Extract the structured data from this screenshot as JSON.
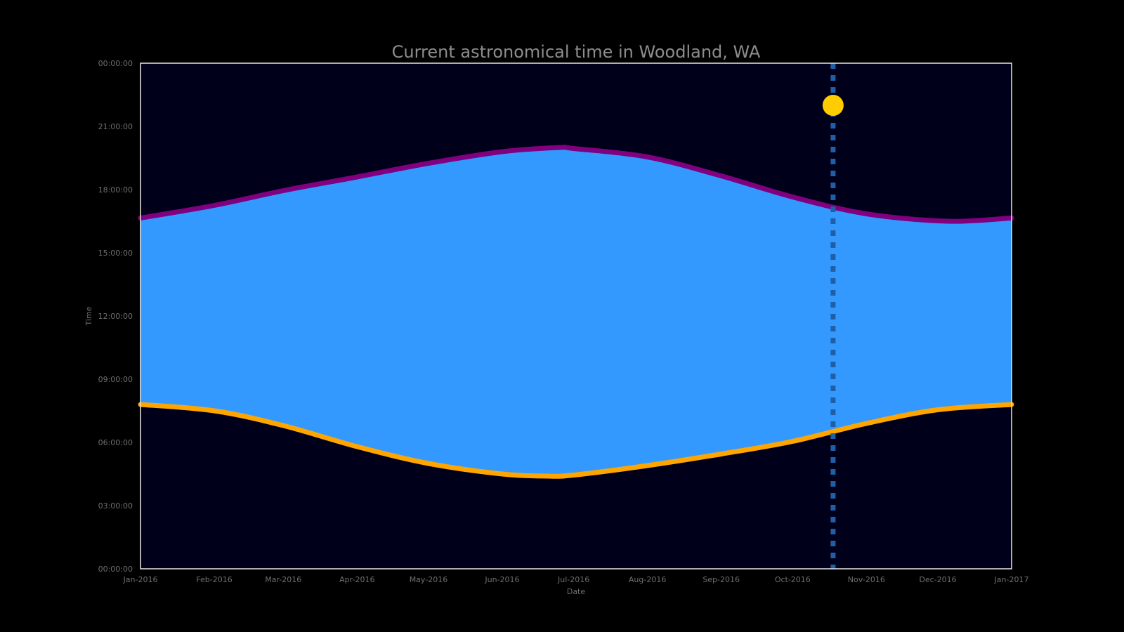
{
  "chart_data": {
    "type": "area",
    "title": "Current astronomical time in Woodland, WA",
    "xlabel": "Date",
    "ylabel": "Time",
    "x_tick_labels": [
      "Jan-2016",
      "Feb-2016",
      "Mar-2016",
      "Apr-2016",
      "May-2016",
      "Jun-2016",
      "Jul-2016",
      "Aug-2016",
      "Sep-2016",
      "Oct-2016",
      "Nov-2016",
      "Dec-2016",
      "Jan-2017"
    ],
    "y_tick_labels": [
      "00:00:00",
      "03:00:00",
      "06:00:00",
      "09:00:00",
      "12:00:00",
      "15:00:00",
      "18:00:00",
      "21:00:00",
      "00:00:00"
    ],
    "x_range": [
      "2016-01-01",
      "2017-01-01"
    ],
    "y_range_hours": [
      0,
      24
    ],
    "series": [
      {
        "name": "",
        "role": "sunrise",
        "color": "#ffa500",
        "x": [
          "2016-01-01",
          "2016-02-01",
          "2016-03-01",
          "2016-04-01",
          "2016-05-01",
          "2016-06-01",
          "2016-06-20",
          "2016-07-01",
          "2016-08-01",
          "2016-09-01",
          "2016-10-01",
          "2016-11-01",
          "2016-12-01",
          "2017-01-01"
        ],
        "y_hours": [
          7.8,
          7.5,
          6.8,
          5.8,
          5.0,
          4.5,
          4.4,
          4.45,
          4.9,
          5.45,
          6.05,
          6.9,
          7.55,
          7.8
        ]
      },
      {
        "name": "",
        "role": "sunset",
        "color": "#800080",
        "x": [
          "2016-01-01",
          "2016-02-01",
          "2016-03-01",
          "2016-04-01",
          "2016-05-01",
          "2016-06-01",
          "2016-06-25",
          "2016-07-01",
          "2016-08-01",
          "2016-09-01",
          "2016-10-01",
          "2016-11-01",
          "2016-12-05",
          "2017-01-01"
        ],
        "y_hours": [
          16.65,
          17.25,
          17.95,
          18.6,
          19.25,
          19.8,
          20.0,
          19.95,
          19.55,
          18.65,
          17.65,
          16.85,
          16.5,
          16.65
        ]
      }
    ],
    "daylight_fill_color": "#3399ff",
    "night_background_color": "#00001a",
    "current_marker": {
      "date": "2016-10-18",
      "time_hours": 22.0,
      "sun_color": "#ffcc00",
      "line_color": "#1f5fa8"
    },
    "grid": false,
    "legend": "none"
  }
}
